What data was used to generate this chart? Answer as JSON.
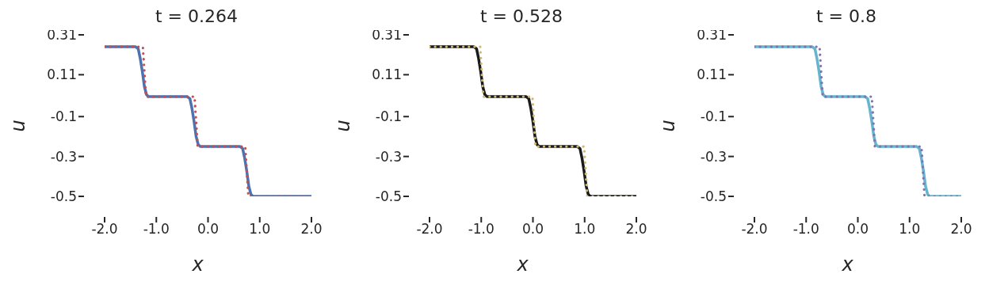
{
  "chart_data": [
    {
      "type": "line",
      "title": "t = 0.264",
      "xlabel": "x",
      "ylabel": "u",
      "xlim": [
        -2,
        2
      ],
      "ylim": [
        -0.5,
        0.31
      ],
      "xticks": [
        {
          "value": -2,
          "label": "-2.0"
        },
        {
          "value": -1,
          "label": "-1.0"
        },
        {
          "value": 0,
          "label": "0.0"
        },
        {
          "value": 1,
          "label": "1.0"
        },
        {
          "value": 2,
          "label": "2.0"
        }
      ],
      "yticks": [
        -0.5,
        -0.3,
        -0.1,
        0.11,
        0.31
      ],
      "series": [
        {
          "color": "#4c72b0",
          "line_style": "solid",
          "x": [
            -2,
            -1.4,
            -1.35,
            -1.31,
            -1.27,
            -1.23,
            -1.19,
            -1.15,
            -0.4,
            -0.35,
            -0.31,
            -0.27,
            -0.23,
            -0.19,
            -0.15,
            0.62,
            0.67,
            0.71,
            0.75,
            0.79,
            0.83,
            0.87,
            2
          ],
          "values": [
            0.25,
            0.25,
            0.24,
            0.19,
            0.125,
            0.05,
            0.01,
            0,
            0,
            -0.01,
            -0.06,
            -0.125,
            -0.2,
            -0.24,
            -0.25,
            -0.25,
            -0.26,
            -0.31,
            -0.375,
            -0.45,
            -0.49,
            -0.5,
            -0.5
          ]
        },
        {
          "color": "#c44e52",
          "line_style": "dotted",
          "x": [
            -2,
            -1.26,
            -1.2,
            -0.26,
            -0.2,
            0.72,
            0.78,
            2
          ],
          "values": [
            0.25,
            0.25,
            0,
            0,
            -0.25,
            -0.25,
            -0.5,
            -0.5
          ]
        }
      ]
    },
    {
      "type": "line",
      "title": "t = 0.528",
      "xlabel": "x",
      "ylabel": "u",
      "xlim": [
        -2,
        2
      ],
      "ylim": [
        -0.5,
        0.31
      ],
      "xticks": [
        {
          "value": -2,
          "label": "-2.0"
        },
        {
          "value": -1,
          "label": "-1.0"
        },
        {
          "value": 0,
          "label": "0.0"
        },
        {
          "value": 1,
          "label": "1.0"
        },
        {
          "value": 2,
          "label": "2.0"
        }
      ],
      "yticks": [
        -0.5,
        -0.3,
        -0.1,
        0.11,
        0.31
      ],
      "series": [
        {
          "color": "#1a1a1a",
          "line_style": "solid",
          "x": [
            -2,
            -1.14,
            -1.09,
            -1.05,
            -1.01,
            -0.97,
            -0.93,
            -0.89,
            -0.13,
            -0.08,
            -0.04,
            0,
            0.04,
            0.08,
            0.12,
            0.86,
            0.91,
            0.95,
            0.99,
            1.03,
            1.07,
            1.11,
            2
          ],
          "values": [
            0.25,
            0.25,
            0.24,
            0.19,
            0.125,
            0.05,
            0.01,
            0,
            0,
            -0.01,
            -0.06,
            -0.125,
            -0.2,
            -0.24,
            -0.25,
            -0.25,
            -0.26,
            -0.31,
            -0.375,
            -0.45,
            -0.49,
            -0.5,
            -0.5
          ]
        },
        {
          "color": "#ccb974",
          "line_style": "dotted",
          "x": [
            -2,
            -1.02,
            -0.96,
            -0.01,
            0.05,
            0.99,
            1.05,
            2
          ],
          "values": [
            0.25,
            0.25,
            0,
            0,
            -0.25,
            -0.25,
            -0.5,
            -0.5
          ]
        }
      ]
    },
    {
      "type": "line",
      "title": "t = 0.8",
      "xlabel": "x",
      "ylabel": "u",
      "xlim": [
        -2,
        2
      ],
      "ylim": [
        -0.5,
        0.31
      ],
      "xticks": [
        {
          "value": -2,
          "label": "-2.0"
        },
        {
          "value": -1,
          "label": "-1.0"
        },
        {
          "value": 0,
          "label": "0.0"
        },
        {
          "value": 1,
          "label": "1.0"
        },
        {
          "value": 2,
          "label": "2.0"
        }
      ],
      "yticks": [
        -0.5,
        -0.3,
        -0.1,
        0.11,
        0.31
      ],
      "series": [
        {
          "color": "#64b5cd",
          "line_style": "solid",
          "x": [
            -2,
            -0.88,
            -0.83,
            -0.79,
            -0.75,
            -0.71,
            -0.67,
            -0.63,
            0.14,
            0.19,
            0.23,
            0.27,
            0.31,
            0.35,
            0.39,
            1.14,
            1.19,
            1.23,
            1.27,
            1.31,
            1.35,
            1.39,
            2
          ],
          "values": [
            0.25,
            0.25,
            0.24,
            0.19,
            0.125,
            0.05,
            0.01,
            0,
            0,
            -0.01,
            -0.06,
            -0.125,
            -0.2,
            -0.24,
            -0.25,
            -0.25,
            -0.26,
            -0.31,
            -0.375,
            -0.45,
            -0.49,
            -0.5,
            -0.5
          ]
        },
        {
          "color": "#8172b2",
          "line_style": "dotted",
          "x": [
            -2,
            -0.74,
            -0.68,
            0.27,
            0.33,
            1.23,
            1.29,
            2
          ],
          "values": [
            0.25,
            0.25,
            0,
            0,
            -0.25,
            -0.25,
            -0.5,
            -0.5
          ]
        }
      ]
    }
  ]
}
